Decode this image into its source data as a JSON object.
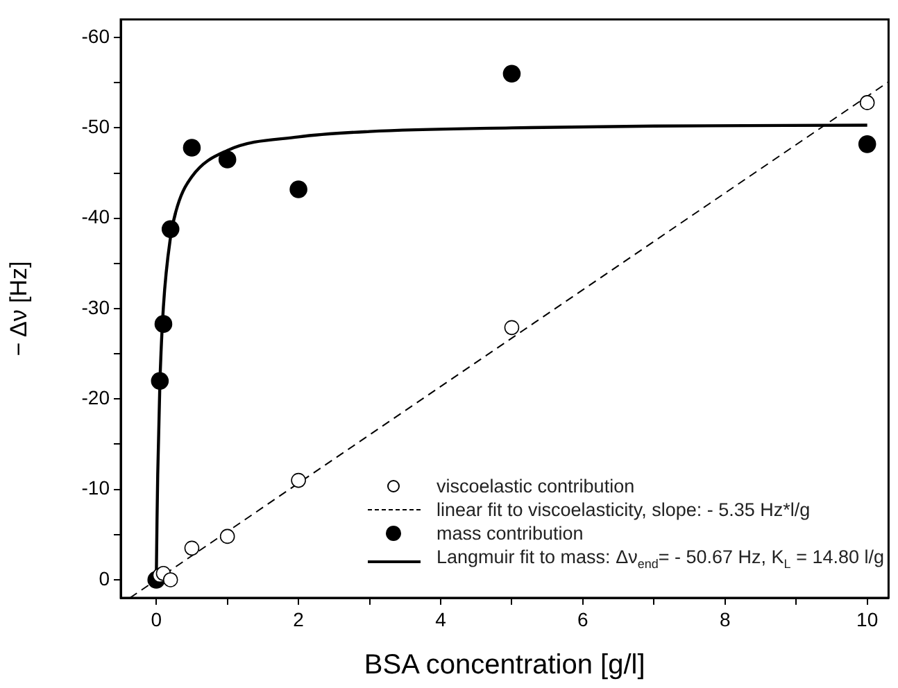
{
  "chart_data": {
    "type": "scatter",
    "xlabel": "BSA concentration [g/l]",
    "ylabel": "− Δν [Hz]",
    "xlim": [
      -0.5,
      10.3
    ],
    "ylim": [
      2,
      -62
    ],
    "xticks": [
      0,
      {
        "value": 1,
        "label": null
      },
      2,
      {
        "value": 3,
        "label": null
      },
      4,
      {
        "value": 5,
        "label": null
      },
      6,
      {
        "value": 7,
        "label": null
      },
      8,
      {
        "value": 9,
        "label": null
      },
      10
    ],
    "yticks": [
      0,
      {
        "value": -5,
        "label": null
      },
      -10,
      {
        "value": -15,
        "label": null
      },
      -20,
      {
        "value": -25,
        "label": null
      },
      -30,
      {
        "value": -35,
        "label": null
      },
      -40,
      {
        "value": -45,
        "label": null
      },
      -50,
      {
        "value": -55,
        "label": null
      },
      -60
    ],
    "grid": false,
    "legend": "bottom right",
    "series": [
      {
        "name": "viscoelastic contribution",
        "type": "scatter",
        "marker": "circle",
        "color": "#ffffff",
        "x": [
          0.05,
          0.1,
          0.2,
          0.5,
          1,
          2,
          5,
          10
        ],
        "values": [
          -0.5,
          -0.7,
          0,
          -3.5,
          -4.8,
          -11,
          -27.9,
          -52.8
        ]
      },
      {
        "name": "linear fit to viscoelasticity, slope: - 5.35 Hz*l/g",
        "type": "line",
        "marker": "none",
        "line_style": "dashed",
        "color": "#000000",
        "x": [
          -0.37,
          10.3
        ],
        "values": [
          2,
          -55.1
        ]
      },
      {
        "name": "mass contribution",
        "type": "scatter",
        "marker": "circle",
        "color": "#000000",
        "x": [
          0,
          0.05,
          0.1,
          0.2,
          0.5,
          1,
          2,
          5,
          10
        ],
        "values": [
          0,
          -22,
          -28.3,
          -38.8,
          -47.8,
          -46.5,
          -43.2,
          -56,
          -48.2
        ]
      },
      {
        "name": "Langmuir fit to mass: Δν$_{end}$= - 50.67 Hz, K$_{L}$ = 14.80 l/g",
        "type": "line",
        "marker": "none",
        "line_style": "solid",
        "color": "#000000",
        "x": [
          0,
          0.01,
          0.02,
          0.05,
          0.1,
          0.2,
          0.3,
          0.5,
          1,
          2,
          3,
          5,
          7,
          10
        ],
        "values": [
          0,
          -6.5,
          -11.6,
          -21.6,
          -30.2,
          -37.9,
          -41.4,
          -44.6,
          -47.5,
          -49,
          -49.6,
          -50,
          -50.2,
          -50.3
        ]
      }
    ]
  }
}
